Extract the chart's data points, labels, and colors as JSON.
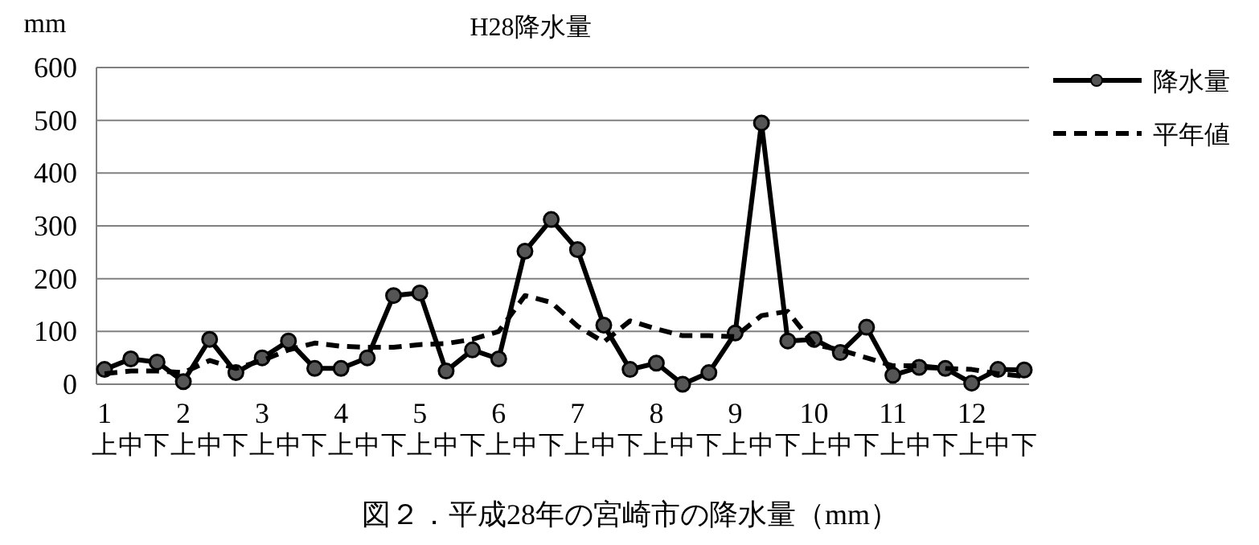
{
  "chart_data": {
    "type": "line",
    "title": "H28降水量",
    "ylabel": "mm",
    "categories": [
      "1\n上",
      "中",
      "下",
      "2\n上",
      "中",
      "下",
      "3\n上",
      "中",
      "下",
      "4\n上",
      "中",
      "下",
      "5\n上",
      "中",
      "下",
      "6\n上",
      "中",
      "下",
      "7\n上",
      "中",
      "下",
      "8\n上",
      "中",
      "下",
      "9\n上",
      "中",
      "下",
      "10\n上",
      "中",
      "下",
      "11\n上",
      "中",
      "下",
      "12\n上",
      "中",
      "下"
    ],
    "series": [
      {
        "name": "降水量",
        "color": "#000000",
        "marker": "circle",
        "line_style": "solid",
        "values": [
          28,
          48,
          42,
          5,
          85,
          22,
          50,
          82,
          30,
          30,
          50,
          168,
          173,
          25,
          65,
          48,
          252,
          312,
          255,
          112,
          28,
          40,
          0,
          22,
          97,
          495,
          82,
          85,
          60,
          108,
          17,
          32,
          30,
          2,
          28,
          27
        ]
      },
      {
        "name": "平年値",
        "color": "#000000",
        "marker": "none",
        "line_style": "dashed",
        "values": [
          20,
          25,
          25,
          22,
          45,
          30,
          45,
          65,
          78,
          72,
          70,
          70,
          75,
          77,
          85,
          100,
          168,
          155,
          110,
          80,
          120,
          105,
          92,
          92,
          90,
          130,
          138,
          75,
          65,
          50,
          35,
          35,
          30,
          28,
          20,
          15
        ]
      }
    ],
    "ylim": [
      0,
      600
    ],
    "yticks": [
      0,
      100,
      200,
      300,
      400,
      500,
      600
    ],
    "grid": "y",
    "legend": "top right",
    "annotations": [
      "図２．平成28年の宮崎市の降水量（mm）"
    ]
  }
}
